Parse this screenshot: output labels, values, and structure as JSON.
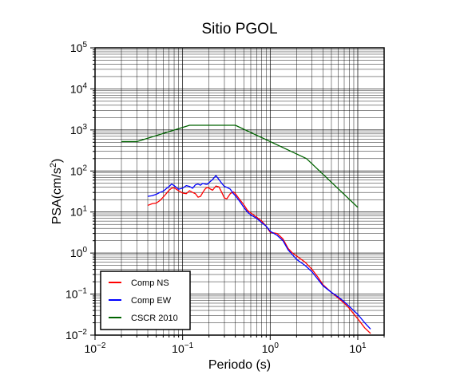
{
  "chart_data": {
    "type": "line",
    "title": "Sitio PGOL",
    "xlabel": "Periodo (s)",
    "ylabel": {
      "prefix": "PSA(cm/s",
      "sup": "2",
      "suffix": ")"
    },
    "x_scale": "log",
    "y_scale": "log",
    "xlim": [
      0.01,
      20
    ],
    "ylim": [
      0.01,
      100000
    ],
    "grid": true,
    "legend_placement": "bottom-left",
    "x_ticks": [
      {
        "base": "10",
        "exp": "−2"
      },
      {
        "base": "10",
        "exp": "−1"
      },
      {
        "base": "10",
        "exp": "0"
      },
      {
        "base": "10",
        "exp": "1"
      }
    ],
    "y_ticks": [
      {
        "base": "10",
        "exp": "−2"
      },
      {
        "base": "10",
        "exp": "−1"
      },
      {
        "base": "10",
        "exp": "0"
      },
      {
        "base": "10",
        "exp": "1"
      },
      {
        "base": "10",
        "exp": "2"
      },
      {
        "base": "10",
        "exp": "3"
      },
      {
        "base": "10",
        "exp": "4"
      },
      {
        "base": "10",
        "exp": "5"
      }
    ],
    "series": [
      {
        "name": "Comp NS",
        "color": "#ff0000",
        "points": [
          [
            0.04,
            14.5
          ],
          [
            0.045,
            16
          ],
          [
            0.05,
            16.5
          ],
          [
            0.055,
            19
          ],
          [
            0.06,
            23
          ],
          [
            0.065,
            28
          ],
          [
            0.07,
            34
          ],
          [
            0.075,
            38
          ],
          [
            0.08,
            39
          ],
          [
            0.09,
            33
          ],
          [
            0.1,
            29
          ],
          [
            0.11,
            28
          ],
          [
            0.12,
            33
          ],
          [
            0.13,
            30
          ],
          [
            0.14,
            28
          ],
          [
            0.15,
            23
          ],
          [
            0.16,
            24
          ],
          [
            0.17,
            30
          ],
          [
            0.18,
            36
          ],
          [
            0.19,
            40
          ],
          [
            0.2,
            38
          ],
          [
            0.22,
            34
          ],
          [
            0.24,
            43
          ],
          [
            0.26,
            41
          ],
          [
            0.28,
            30
          ],
          [
            0.3,
            22
          ],
          [
            0.32,
            21
          ],
          [
            0.35,
            28
          ],
          [
            0.38,
            31
          ],
          [
            0.4,
            28
          ],
          [
            0.45,
            20
          ],
          [
            0.5,
            15
          ],
          [
            0.55,
            11
          ],
          [
            0.6,
            9.5
          ],
          [
            0.7,
            7.5
          ],
          [
            0.8,
            6
          ],
          [
            0.9,
            4.5
          ],
          [
            1.0,
            3.2
          ],
          [
            1.2,
            3.0
          ],
          [
            1.4,
            2.2
          ],
          [
            1.6,
            1.3
          ],
          [
            1.8,
            1.0
          ],
          [
            2.0,
            0.85
          ],
          [
            2.5,
            0.6
          ],
          [
            3.0,
            0.4
          ],
          [
            3.5,
            0.26
          ],
          [
            4.0,
            0.17
          ],
          [
            5.0,
            0.11
          ],
          [
            6.0,
            0.08
          ],
          [
            7.0,
            0.06
          ],
          [
            8.0,
            0.045
          ],
          [
            10.0,
            0.025
          ],
          [
            12.0,
            0.015
          ],
          [
            14.0,
            0.011
          ]
        ]
      },
      {
        "name": "Comp EW",
        "color": "#0000ff",
        "points": [
          [
            0.04,
            24
          ],
          [
            0.045,
            25
          ],
          [
            0.05,
            27
          ],
          [
            0.055,
            30
          ],
          [
            0.06,
            32
          ],
          [
            0.065,
            37
          ],
          [
            0.07,
            42
          ],
          [
            0.075,
            48
          ],
          [
            0.08,
            44
          ],
          [
            0.09,
            36
          ],
          [
            0.1,
            38
          ],
          [
            0.11,
            44
          ],
          [
            0.12,
            42
          ],
          [
            0.13,
            38
          ],
          [
            0.14,
            46
          ],
          [
            0.15,
            48
          ],
          [
            0.16,
            45
          ],
          [
            0.17,
            50
          ],
          [
            0.18,
            48
          ],
          [
            0.19,
            47
          ],
          [
            0.2,
            52
          ],
          [
            0.22,
            62
          ],
          [
            0.24,
            77
          ],
          [
            0.26,
            62
          ],
          [
            0.28,
            50
          ],
          [
            0.3,
            42
          ],
          [
            0.32,
            40
          ],
          [
            0.35,
            36
          ],
          [
            0.38,
            28
          ],
          [
            0.4,
            25
          ],
          [
            0.45,
            18
          ],
          [
            0.5,
            13
          ],
          [
            0.55,
            10
          ],
          [
            0.6,
            8.5
          ],
          [
            0.7,
            7
          ],
          [
            0.8,
            5.5
          ],
          [
            0.9,
            4.5
          ],
          [
            1.0,
            3.4
          ],
          [
            1.2,
            2.7
          ],
          [
            1.4,
            2.0
          ],
          [
            1.6,
            1.2
          ],
          [
            1.8,
            0.9
          ],
          [
            2.0,
            0.7
          ],
          [
            2.5,
            0.5
          ],
          [
            3.0,
            0.35
          ],
          [
            3.5,
            0.23
          ],
          [
            4.0,
            0.16
          ],
          [
            5.0,
            0.11
          ],
          [
            6.0,
            0.085
          ],
          [
            7.0,
            0.065
          ],
          [
            8.0,
            0.05
          ],
          [
            10.0,
            0.032
          ],
          [
            12.0,
            0.02
          ],
          [
            14.0,
            0.014
          ]
        ]
      },
      {
        "name": "CSCR 2010",
        "color": "#006400",
        "points": [
          [
            0.02,
            520
          ],
          [
            0.03,
            520
          ],
          [
            0.12,
            1300
          ],
          [
            0.4,
            1300
          ],
          [
            2.6,
            200
          ],
          [
            10.0,
            13
          ]
        ]
      }
    ]
  }
}
